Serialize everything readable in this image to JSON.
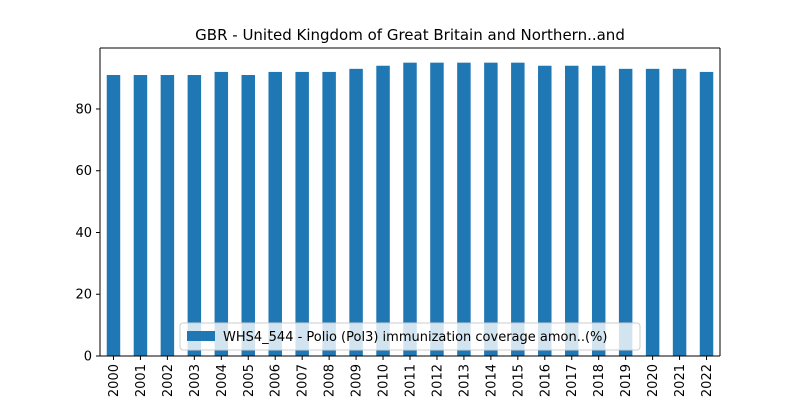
{
  "chart_data": {
    "type": "bar",
    "title": "GBR - United Kingdom of Great Britain and Northern..and",
    "xlabel": "",
    "ylabel": "",
    "categories": [
      "2000",
      "2001",
      "2002",
      "2003",
      "2004",
      "2005",
      "2006",
      "2007",
      "2008",
      "2009",
      "2010",
      "2011",
      "2012",
      "2013",
      "2014",
      "2015",
      "2016",
      "2017",
      "2018",
      "2019",
      "2020",
      "2021",
      "2022"
    ],
    "series": [
      {
        "name": "WHS4_544 - Polio (Pol3) immunization coverage amon..(%)",
        "values": [
          91,
          91,
          91,
          91,
          92,
          91,
          92,
          92,
          92,
          93,
          94,
          95,
          95,
          95,
          95,
          95,
          94,
          94,
          94,
          93,
          93,
          93,
          92
        ],
        "color": "#1f77b4"
      }
    ],
    "ylim": [
      0,
      99.75
    ],
    "yticks": [
      0,
      20,
      40,
      60,
      80
    ],
    "grid": false,
    "legend_position": "lower center"
  }
}
